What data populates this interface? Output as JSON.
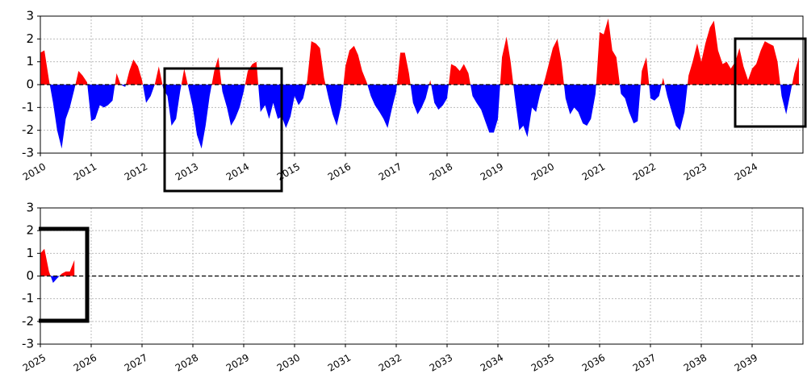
{
  "chart_data": [
    {
      "type": "area",
      "pos_color": "#ff0000",
      "neg_color": "#0000ff",
      "grid": true,
      "zero_line": true,
      "xlim": [
        2010,
        2025
      ],
      "ylim": [
        -3,
        3
      ],
      "yticks": [
        -3,
        -2,
        -1,
        0,
        1,
        2,
        3
      ],
      "xticks": [
        2010,
        2011,
        2012,
        2013,
        2014,
        2015,
        2016,
        2017,
        2018,
        2019,
        2020,
        2021,
        2022,
        2023,
        2024
      ],
      "x": [
        2010,
        2010.08,
        2010.17,
        2010.25,
        2010.33,
        2010.42,
        2010.5,
        2010.58,
        2010.67,
        2010.75,
        2010.83,
        2010.92,
        2011,
        2011.08,
        2011.17,
        2011.25,
        2011.33,
        2011.42,
        2011.5,
        2011.58,
        2011.67,
        2011.75,
        2011.83,
        2011.92,
        2012,
        2012.08,
        2012.17,
        2012.25,
        2012.33,
        2012.42,
        2012.5,
        2012.58,
        2012.67,
        2012.75,
        2012.83,
        2012.92,
        2013,
        2013.08,
        2013.17,
        2013.25,
        2013.33,
        2013.42,
        2013.5,
        2013.58,
        2013.67,
        2013.75,
        2013.83,
        2013.92,
        2014,
        2014.08,
        2014.17,
        2014.25,
        2014.33,
        2014.42,
        2014.5,
        2014.58,
        2014.67,
        2014.75,
        2014.83,
        2014.92,
        2015,
        2015.08,
        2015.17,
        2015.25,
        2015.33,
        2015.42,
        2015.5,
        2015.58,
        2015.67,
        2015.75,
        2015.83,
        2015.92,
        2016,
        2016.08,
        2016.17,
        2016.25,
        2016.33,
        2016.42,
        2016.5,
        2016.58,
        2016.67,
        2016.75,
        2016.83,
        2016.92,
        2017,
        2017.08,
        2017.17,
        2017.25,
        2017.33,
        2017.42,
        2017.5,
        2017.58,
        2017.67,
        2017.75,
        2017.83,
        2017.92,
        2018,
        2018.08,
        2018.17,
        2018.25,
        2018.33,
        2018.42,
        2018.5,
        2018.58,
        2018.67,
        2018.75,
        2018.83,
        2018.92,
        2019,
        2019.08,
        2019.17,
        2019.25,
        2019.33,
        2019.42,
        2019.5,
        2019.58,
        2019.67,
        2019.75,
        2019.83,
        2019.92,
        2020,
        2020.08,
        2020.17,
        2020.25,
        2020.33,
        2020.42,
        2020.5,
        2020.58,
        2020.67,
        2020.75,
        2020.83,
        2020.92,
        2021,
        2021.08,
        2021.17,
        2021.25,
        2021.33,
        2021.42,
        2021.5,
        2021.58,
        2021.67,
        2021.75,
        2021.83,
        2021.92,
        2022,
        2022.08,
        2022.17,
        2022.25,
        2022.33,
        2022.42,
        2022.5,
        2022.58,
        2022.67,
        2022.75,
        2022.83,
        2022.92,
        2023,
        2023.08,
        2023.17,
        2023.25,
        2023.33,
        2023.42,
        2023.5,
        2023.58,
        2023.67,
        2023.75,
        2023.83,
        2023.92,
        2024,
        2024.08,
        2024.17,
        2024.25,
        2024.33,
        2024.42,
        2024.5,
        2024.58,
        2024.67,
        2024.75,
        2024.83,
        2024.92
      ],
      "values": [
        1.4,
        1.5,
        0.2,
        -0.8,
        -2.0,
        -2.8,
        -1.5,
        -1.0,
        -0.2,
        0.6,
        0.4,
        0.1,
        -1.6,
        -1.5,
        -0.9,
        -1.0,
        -0.9,
        -0.7,
        0.5,
        0,
        -0.1,
        0.6,
        1.1,
        0.8,
        0.2,
        -0.8,
        -0.5,
        0,
        0.8,
        -0.2,
        -0.5,
        -1.8,
        -1.5,
        -0.3,
        0.7,
        -0.2,
        -1.0,
        -2.2,
        -2.8,
        -1.8,
        -0.5,
        0.6,
        1.2,
        -0.3,
        -1.0,
        -1.8,
        -1.5,
        -1.0,
        -0.3,
        0.6,
        0.9,
        1.0,
        -1.2,
        -0.9,
        -1.5,
        -0.8,
        -1.5,
        -1.4,
        -1.9,
        -1.4,
        -0.5,
        -0.9,
        -0.6,
        0.2,
        1.9,
        1.8,
        1.6,
        0.3,
        -0.6,
        -1.3,
        -1.8,
        -0.9,
        0.8,
        1.5,
        1.7,
        1.3,
        0.6,
        0.1,
        -0.5,
        -0.9,
        -1.2,
        -1.5,
        -1.9,
        -1.0,
        -0.3,
        1.4,
        1.4,
        0.5,
        -0.8,
        -1.3,
        -1.0,
        -0.6,
        0.2,
        -0.8,
        -1.1,
        -0.9,
        -0.6,
        0.9,
        0.8,
        0.6,
        0.9,
        0.5,
        -0.5,
        -0.8,
        -1.1,
        -1.6,
        -2.1,
        -2.1,
        -1.5,
        1.2,
        2.1,
        1.0,
        -0.5,
        -2.0,
        -1.8,
        -2.3,
        -1.0,
        -1.2,
        -0.4,
        0.2,
        0.9,
        1.6,
        2.0,
        1.0,
        -0.6,
        -1.3,
        -1.0,
        -1.2,
        -1.7,
        -1.8,
        -1.5,
        -0.4,
        2.3,
        2.2,
        2.9,
        1.5,
        1.2,
        -0.4,
        -0.6,
        -1.2,
        -1.7,
        -1.6,
        0.6,
        1.2,
        -0.6,
        -0.7,
        -0.5,
        0.3,
        -0.5,
        -1.2,
        -1.8,
        -2.0,
        -1.2,
        0.4,
        1.0,
        1.8,
        1.0,
        1.8,
        2.5,
        2.8,
        1.5,
        0.9,
        1.0,
        0.7,
        1.0,
        1.6,
        0.8,
        0.2,
        0.7,
        0.9,
        1.5,
        1.9,
        1.8,
        1.7,
        1.0,
        -0.5,
        -1.3,
        -0.4,
        0.5,
        1.2
      ]
    },
    {
      "type": "area",
      "pos_color": "#ff0000",
      "neg_color": "#0000ff",
      "grid": true,
      "zero_line": true,
      "xlim": [
        2025,
        2040
      ],
      "ylim": [
        -3,
        3
      ],
      "yticks": [
        -3,
        -2,
        -1,
        0,
        1,
        2,
        3
      ],
      "xticks": [
        2025,
        2026,
        2027,
        2028,
        2029,
        2030,
        2031,
        2032,
        2033,
        2034,
        2035,
        2036,
        2037,
        2038,
        2039
      ],
      "x": [
        2025,
        2025.08,
        2025.17,
        2025.25,
        2025.33,
        2025.42,
        2025.5,
        2025.58,
        2025.67
      ],
      "values": [
        1.0,
        1.2,
        0.2,
        -0.3,
        -0.1,
        0.1,
        0.2,
        0.2,
        0.7
      ]
    }
  ]
}
